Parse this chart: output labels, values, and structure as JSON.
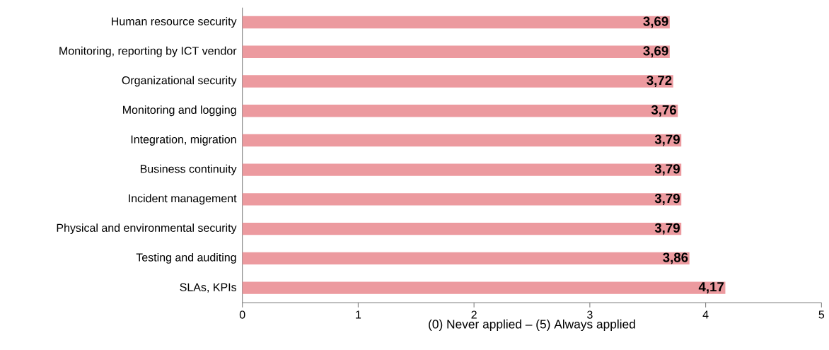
{
  "chart_data": {
    "type": "bar",
    "orientation": "horizontal",
    "xlabel": "(0) Never applied – (5) Always applied",
    "categories": [
      "Human resource security",
      "Monitoring, reporting by ICT vendor",
      "Organizational security",
      "Monitoring and logging",
      "Integration, migration",
      "Business continuity",
      "Incident management",
      "Physical and environmental security",
      "Testing and auditing",
      "SLAs, KPIs"
    ],
    "values": [
      3.69,
      3.69,
      3.72,
      3.76,
      3.79,
      3.79,
      3.79,
      3.79,
      3.86,
      4.17
    ],
    "value_labels": [
      "3,69",
      "3,69",
      "3,72",
      "3,76",
      "3,79",
      "3,79",
      "3,79",
      "3,79",
      "3,86",
      "4,17"
    ],
    "color": "#ec9a9f",
    "xlim": [
      0,
      5
    ],
    "xticks": [
      0,
      1,
      2,
      3,
      4,
      5
    ]
  }
}
